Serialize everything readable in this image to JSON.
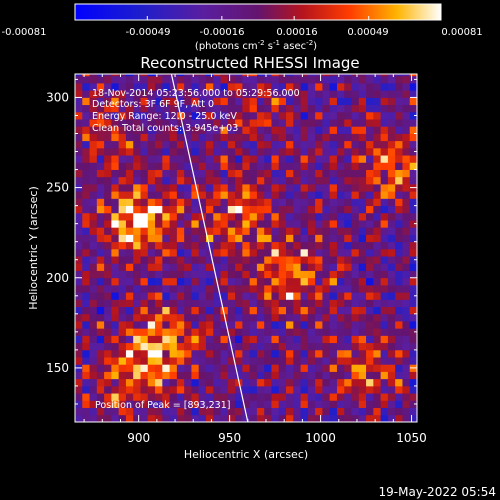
{
  "chart_data": {
    "type": "heatmap",
    "title": "Reconstructed RHESSI Image",
    "xlabel": "Heliocentric X (arcsec)",
    "ylabel": "Heliocentric Y (arcsec)",
    "xlim": [
      865,
      1053
    ],
    "ylim": [
      120,
      313
    ],
    "x_ticks": [
      900,
      950,
      1000,
      1050
    ],
    "y_ticks": [
      150,
      200,
      250,
      300
    ],
    "grid": false,
    "colorbar": {
      "ticks": [
        "-0.00081",
        "-0.00049",
        "-0.00016",
        "0.00016",
        "0.00049",
        "0.00081"
      ],
      "tick_values": [
        -0.00081,
        -0.00049,
        -0.00016,
        0.00016,
        0.00049,
        0.00081
      ],
      "range": [
        -0.00081,
        0.00081
      ],
      "unit_prefix": "(photons cm",
      "unit_exp1": "-2",
      "unit_mid1": " s",
      "unit_exp2": "-1",
      "unit_mid2": " asec",
      "unit_exp3": "-2",
      "unit_suffix": ")"
    },
    "annotations": [
      "18-Nov-2014 05:23:56.000 to 05:29:56.000",
      "Detectors: 3F 6F 9F, Att 0",
      "Energy Range: 12.0 - 25.0 keV",
      "Clean     Total counts: 3.945e+03"
    ],
    "peak_label": "Position of Peak = [893,231]",
    "limb_line": [
      [
        918,
        313
      ],
      [
        960,
        120
      ]
    ],
    "hotspots": [
      {
        "x": 900,
        "y": 232,
        "amp": 0.00081
      },
      {
        "x": 915,
        "y": 165,
        "amp": 0.00065
      },
      {
        "x": 955,
        "y": 235,
        "amp": 0.00055
      },
      {
        "x": 985,
        "y": 200,
        "amp": 0.00058
      },
      {
        "x": 1040,
        "y": 262,
        "amp": 0.0005
      },
      {
        "x": 895,
        "y": 145,
        "amp": 0.00045
      },
      {
        "x": 1025,
        "y": 150,
        "amp": 0.0004
      },
      {
        "x": 880,
        "y": 280,
        "amp": 0.00035
      },
      {
        "x": 965,
        "y": 290,
        "amp": 0.0003
      }
    ]
  },
  "footer": {
    "date": "19-May-2022 05:54"
  }
}
